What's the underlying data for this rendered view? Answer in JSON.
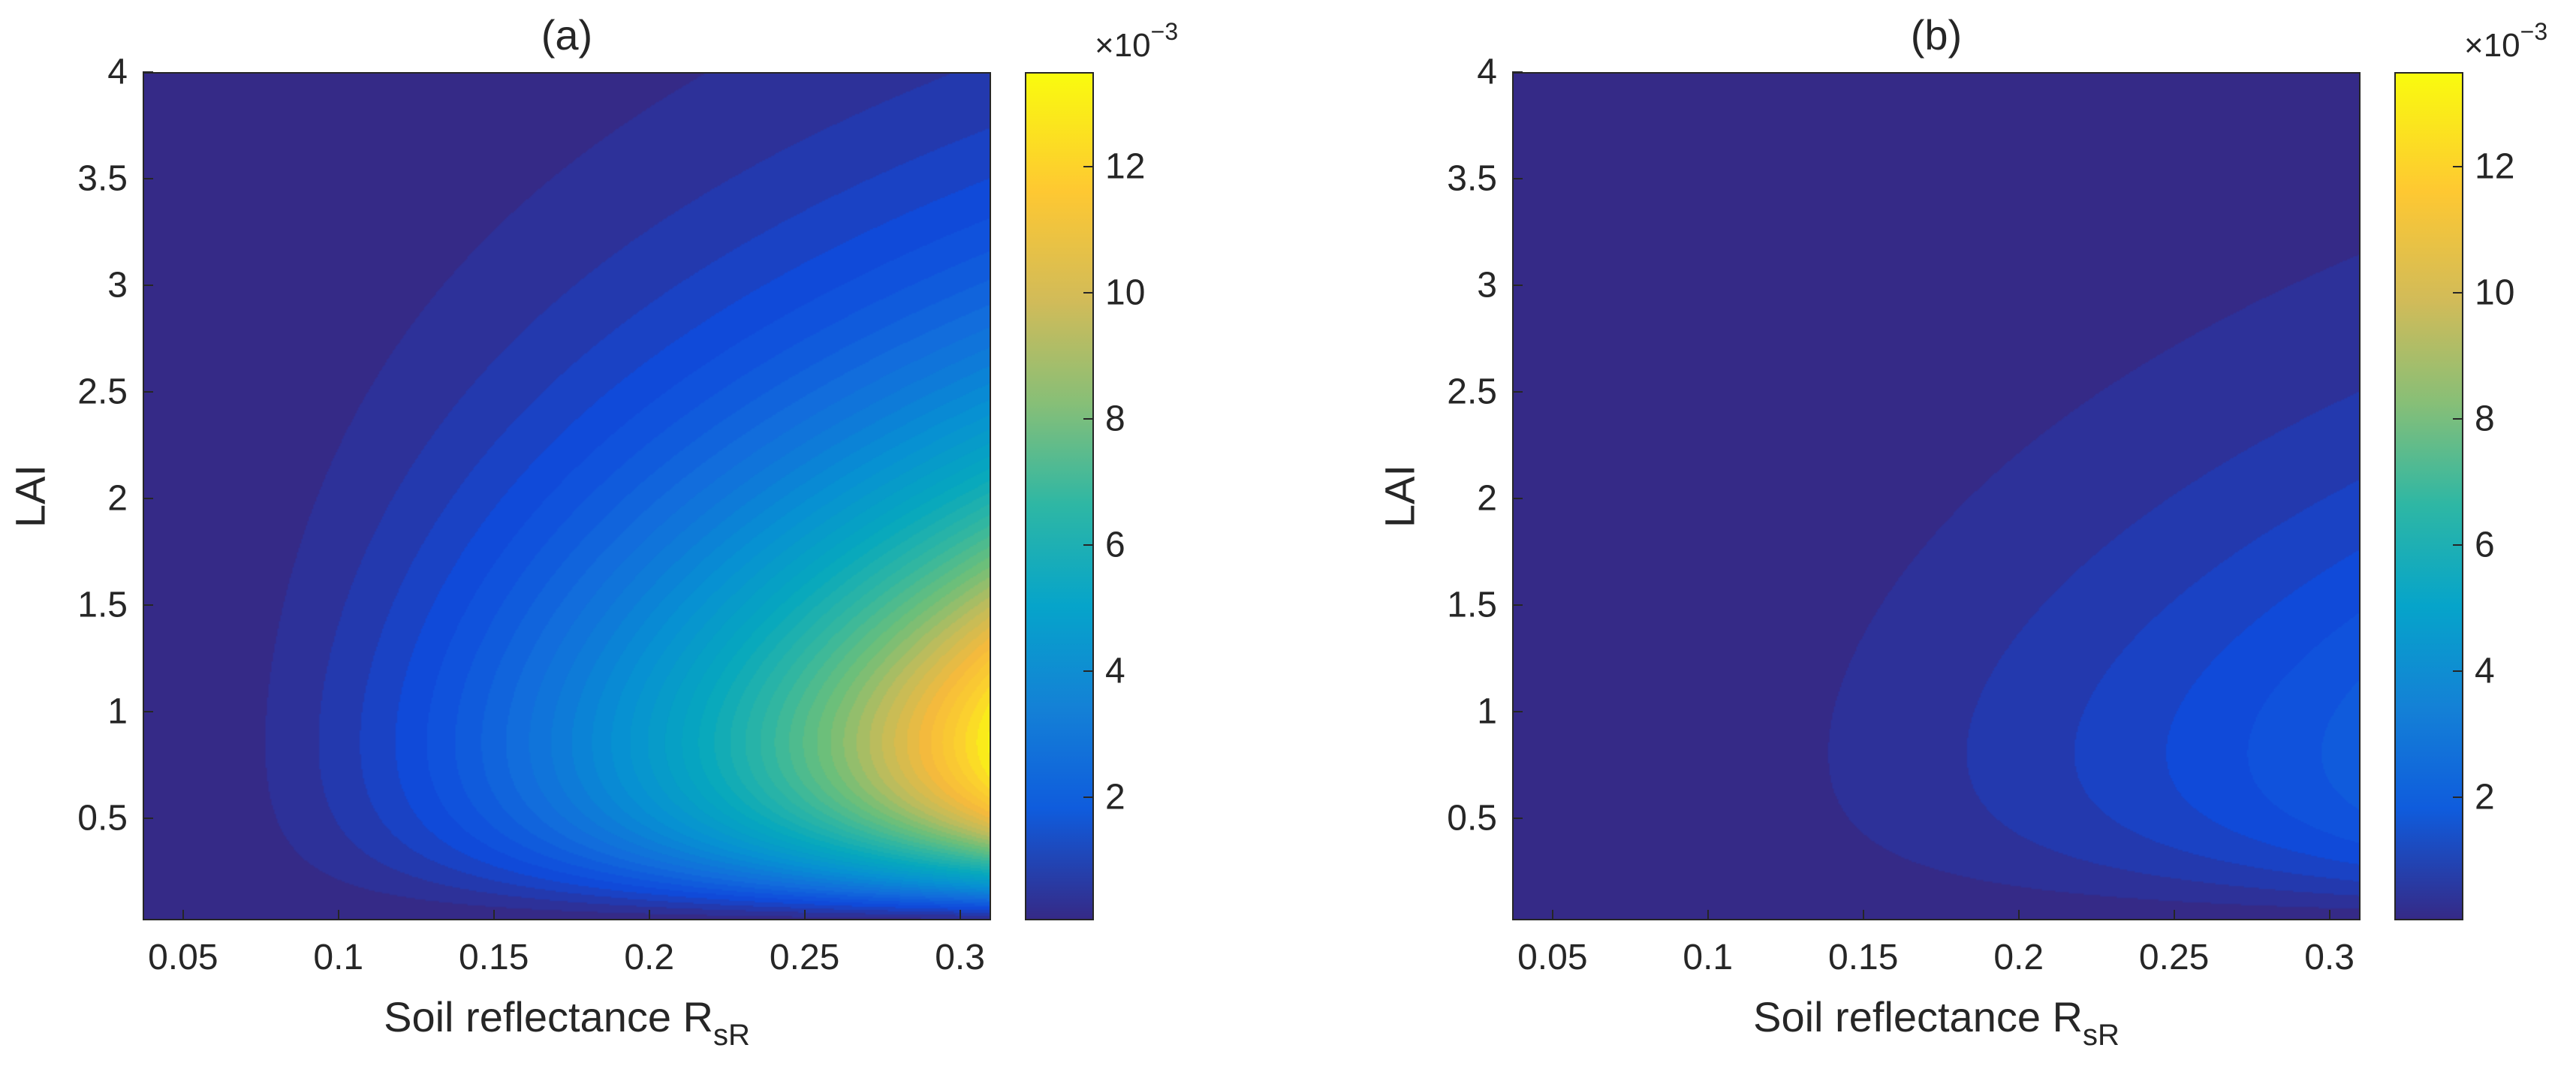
{
  "chart_data": [
    {
      "type": "heatmap",
      "panel": "a",
      "title": "(a)",
      "xlabel_main": "Soil reflectance R",
      "xlabel_sub": "sR",
      "ylabel": "LAI",
      "xlim": [
        0.037,
        0.31
      ],
      "ylim": [
        0.02,
        4
      ],
      "xticks": [
        "0.05",
        "0.1",
        "0.15",
        "0.2",
        "0.25",
        "0.3"
      ],
      "xtick_values": [
        0.05,
        0.1,
        0.15,
        0.2,
        0.25,
        0.3
      ],
      "yticks": [
        "0.5",
        "1",
        "1.5",
        "2",
        "2.5",
        "3",
        "3.5",
        "4"
      ],
      "ytick_values": [
        0.5,
        1,
        1.5,
        2,
        2.5,
        3,
        3.5,
        4
      ],
      "colorbar": {
        "ticks": [
          "2",
          "4",
          "6",
          "8",
          "10",
          "12"
        ],
        "tick_values": [
          2,
          4,
          6,
          8,
          10,
          12
        ],
        "range": [
          0.05,
          13.5
        ],
        "multiplier": "×10",
        "exponent": "−3"
      },
      "peak": {
        "x": 0.31,
        "y": 0.85,
        "value": 13.5
      },
      "colormap": "parula"
    },
    {
      "type": "heatmap",
      "panel": "b",
      "title": "(b)",
      "xlabel_main": "Soil reflectance R",
      "xlabel_sub": "sR",
      "ylabel": "LAI",
      "xlim": [
        0.037,
        0.31
      ],
      "ylim": [
        0.02,
        4
      ],
      "xticks": [
        "0.05",
        "0.1",
        "0.15",
        "0.2",
        "0.25",
        "0.3"
      ],
      "xtick_values": [
        0.05,
        0.1,
        0.15,
        0.2,
        0.25,
        0.3
      ],
      "yticks": [
        "0.5",
        "1",
        "1.5",
        "2",
        "2.5",
        "3",
        "3.5",
        "4"
      ],
      "ytick_values": [
        0.5,
        1,
        1.5,
        2,
        2.5,
        3,
        3.5,
        4
      ],
      "colorbar": {
        "ticks": [
          "2",
          "4",
          "6",
          "8",
          "10",
          "12"
        ],
        "tick_values": [
          2,
          4,
          6,
          8,
          10,
          12
        ],
        "range": [
          0.05,
          13.5
        ],
        "multiplier": "×10",
        "exponent": "−3"
      },
      "peak": {
        "x": 0.31,
        "y": 0.8,
        "value": 2.2
      },
      "colormap": "parula"
    }
  ]
}
